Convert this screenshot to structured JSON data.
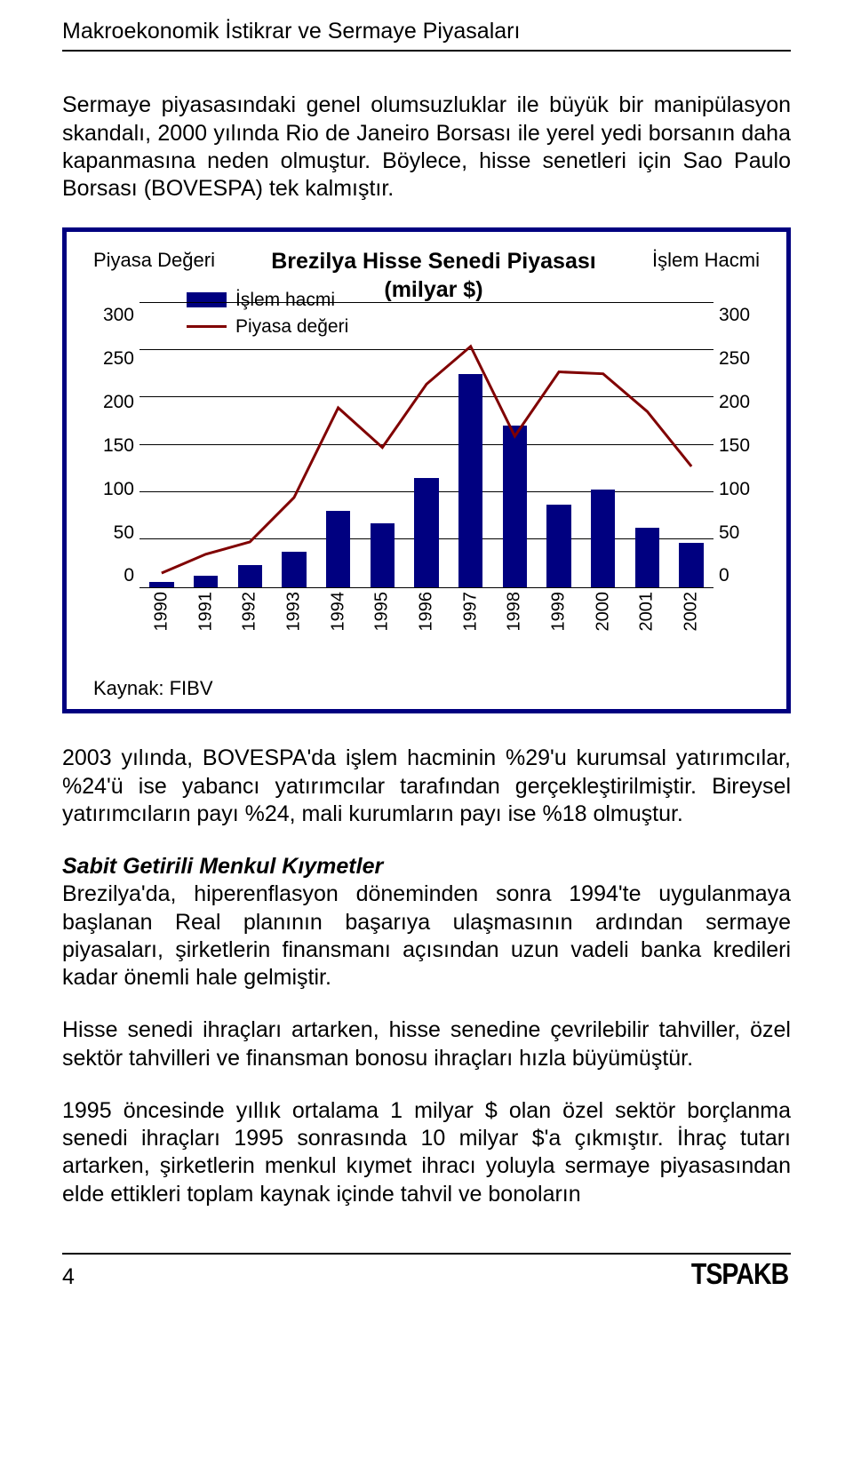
{
  "header": "Makroekonomik İstikrar ve Sermaye Piyasaları",
  "paragraphs": {
    "p1": "Sermaye piyasasındaki genel olumsuzluklar ile büyük bir manipülasyon skandalı, 2000 yılında Rio de Janeiro Borsası ile yerel yedi borsanın daha kapanmasına neden olmuştur. Böylece, hisse senetleri için Sao Paulo Borsası (BOVESPA) tek kalmıştır.",
    "p2": "2003 yılında, BOVESPA'da işlem hacminin %29'u kurumsal yatırımcılar, %24'ü ise yabancı yatırımcılar tarafından gerçekleştirilmiştir. Bireysel yatırımcıların payı %24, mali kurumların payı ise %18 olmuştur.",
    "subhead": "Sabit Getirili Menkul Kıymetler",
    "p3": "Brezilya'da, hiperenflasyon döneminden sonra 1994'te uygulanmaya başlanan Real planının başarıya ulaşmasının ardından sermaye piyasaları, şirketlerin finansmanı açısından uzun vadeli banka kredileri kadar önemli hale gelmiştir.",
    "p4": "Hisse senedi ihraçları artarken, hisse senedine çevrilebilir tahviller, özel sektör tahvilleri ve finansman bonosu ihraçları hızla büyümüştür.",
    "p5": "1995 öncesinde yıllık ortalama 1 milyar $ olan özel sektör borçlanma senedi ihraçları 1995 sonrasında 10 milyar $'a çıkmıştır. İhraç tutarı artarken, şirketlerin menkul kıymet ihracı yoluyla sermaye piyasasından elde ettikleri toplam kaynak içinde tahvil ve bonoların"
  },
  "chart": {
    "type": "combo-bar-line",
    "title": "Brezilya Hisse Senedi Piyasası\n(milyar $)",
    "left_axis_label": "Piyasa Değeri",
    "right_axis_label": "İşlem Hacmi",
    "ymax": 300,
    "ymin": 0,
    "ytick_step": 50,
    "yticks": [
      "300",
      "250",
      "200",
      "150",
      "100",
      "50",
      "0"
    ],
    "x_labels": [
      "1990",
      "1991",
      "1992",
      "1993",
      "1994",
      "1995",
      "1996",
      "1997",
      "1998",
      "1999",
      "2000",
      "2001",
      "2002"
    ],
    "bars": {
      "name": "İşlem hacmi",
      "color": "#000080",
      "values": [
        5,
        12,
        23,
        37,
        80,
        67,
        115,
        225,
        170,
        87,
        103,
        63,
        47
      ]
    },
    "line": {
      "name": "Piyasa değeri",
      "color": "#800000",
      "width": 3,
      "values": [
        15,
        35,
        48,
        95,
        190,
        148,
        215,
        255,
        160,
        228,
        226,
        186,
        128
      ]
    },
    "legend": {
      "item1": "İşlem hacmi",
      "item2": "Piyasa değeri"
    },
    "source": "Kaynak: FIBV",
    "background_color": "#ffffff",
    "grid_color": "#000000",
    "label_fontfamily": "Tahoma",
    "label_fontsize_pt": 16
  },
  "footer": {
    "page": "4",
    "logo": "TSPAKB"
  }
}
